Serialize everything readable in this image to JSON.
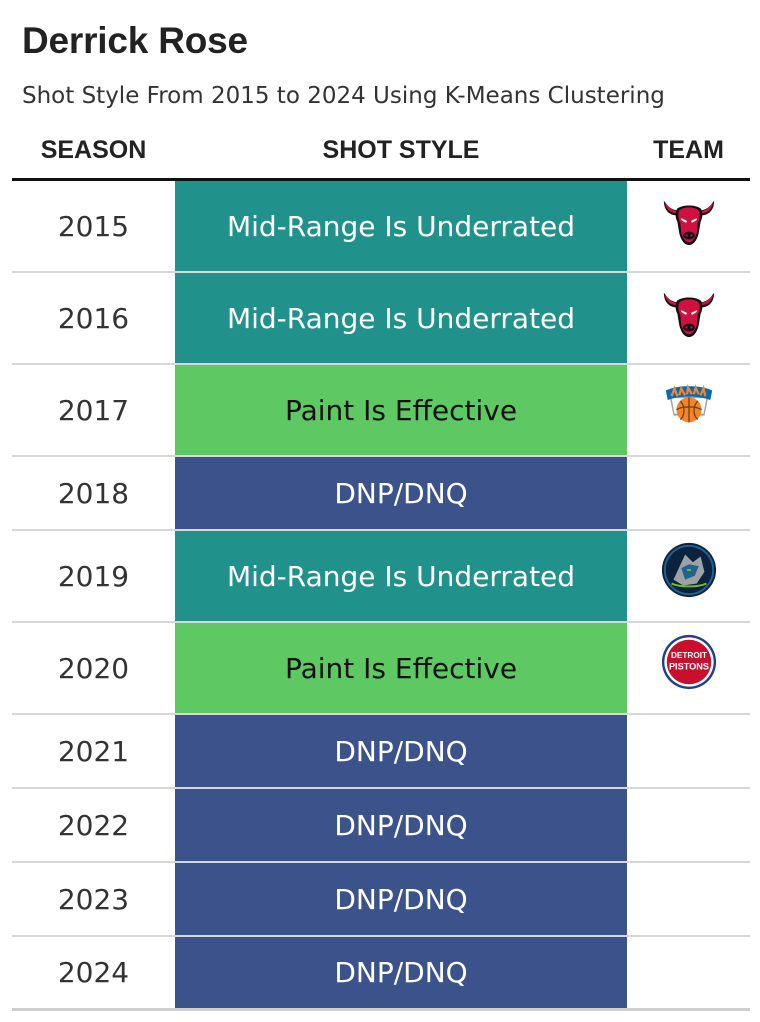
{
  "title": "Derrick Rose",
  "subtitle": "Shot Style From 2015 to 2024 Using K-Means Clustering",
  "columns": {
    "season": "SEASON",
    "shot_style": "SHOT STYLE",
    "team": "TEAM"
  },
  "style_colors": {
    "Mid-Range Is Underrated": {
      "bg": "#21918c",
      "fg": "#ffffff"
    },
    "Paint Is Effective": {
      "bg": "#5ec962",
      "fg": "#111111"
    },
    "DNP/DNQ": {
      "bg": "#3b528b",
      "fg": "#ffffff"
    }
  },
  "chart_data": {
    "type": "table",
    "title": "Derrick Rose",
    "subtitle": "Shot Style From 2015 to 2024 Using K-Means Clustering",
    "columns": [
      "SEASON",
      "SHOT STYLE",
      "TEAM"
    ],
    "rows": [
      {
        "season": "2015",
        "shot_style": "Mid-Range Is Underrated",
        "team_logo": "bulls-logo-icon"
      },
      {
        "season": "2016",
        "shot_style": "Mid-Range Is Underrated",
        "team_logo": "bulls-logo-icon"
      },
      {
        "season": "2017",
        "shot_style": "Paint Is Effective",
        "team_logo": "knicks-logo-icon"
      },
      {
        "season": "2018",
        "shot_style": "DNP/DNQ",
        "team_logo": ""
      },
      {
        "season": "2019",
        "shot_style": "Mid-Range Is Underrated",
        "team_logo": "timberwolves-logo-icon"
      },
      {
        "season": "2020",
        "shot_style": "Paint Is Effective",
        "team_logo": "pistons-logo-icon"
      },
      {
        "season": "2021",
        "shot_style": "DNP/DNQ",
        "team_logo": ""
      },
      {
        "season": "2022",
        "shot_style": "DNP/DNQ",
        "team_logo": ""
      },
      {
        "season": "2023",
        "shot_style": "DNP/DNQ",
        "team_logo": ""
      },
      {
        "season": "2024",
        "shot_style": "DNP/DNQ",
        "team_logo": ""
      }
    ]
  }
}
